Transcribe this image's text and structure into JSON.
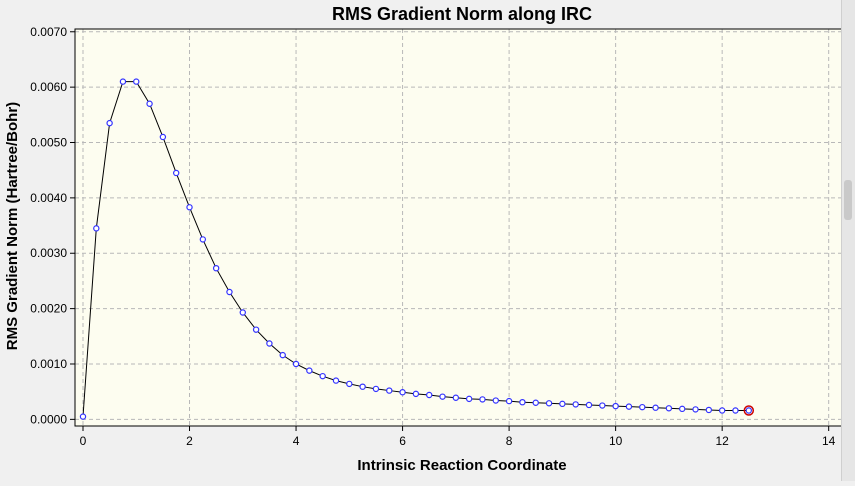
{
  "chart_data": {
    "type": "line",
    "title": "RMS Gradient Norm along IRC",
    "xlabel": "Intrinsic Reaction Coordinate",
    "ylabel": "RMS Gradient Norm (Hartree/Bohr)",
    "xlim": [
      0,
      14
    ],
    "ylim": [
      0,
      0.007
    ],
    "x_ticks": [
      "0",
      "2",
      "4",
      "6",
      "8",
      "10",
      "12",
      "14"
    ],
    "y_ticks": [
      "0.0000",
      "0.0010",
      "0.0020",
      "0.0030",
      "0.0040",
      "0.0050",
      "0.0060",
      "0.0070"
    ],
    "grid": true,
    "legend": "none",
    "series": [
      {
        "line_color": "#000000",
        "marker_color": "#3333ff",
        "highlight_color": "#cc0000",
        "x": [
          0,
          0.25,
          0.5,
          0.75,
          1.0,
          1.25,
          1.5,
          1.75,
          2.0,
          2.25,
          2.5,
          2.75,
          3.0,
          3.25,
          3.5,
          3.75,
          4.0,
          4.25,
          4.5,
          4.75,
          5.0,
          5.25,
          5.5,
          5.75,
          6.0,
          6.25,
          6.5,
          6.75,
          7.0,
          7.25,
          7.5,
          7.75,
          8.0,
          8.25,
          8.5,
          8.75,
          9.0,
          9.25,
          9.5,
          9.75,
          10.0,
          10.25,
          10.5,
          10.75,
          11.0,
          11.25,
          11.5,
          11.75,
          12.0,
          12.25,
          12.5
        ],
        "y": [
          5e-05,
          0.00345,
          0.00535,
          0.0061,
          0.0061,
          0.0057,
          0.0051,
          0.00445,
          0.00383,
          0.00325,
          0.00273,
          0.0023,
          0.00193,
          0.00162,
          0.00137,
          0.00116,
          0.001,
          0.00088,
          0.00078,
          0.0007,
          0.00064,
          0.00059,
          0.00055,
          0.00052,
          0.00049,
          0.00046,
          0.00044,
          0.00041,
          0.00039,
          0.00037,
          0.00036,
          0.00034,
          0.00033,
          0.00031,
          0.0003,
          0.00029,
          0.00028,
          0.00027,
          0.00026,
          0.00025,
          0.00024,
          0.00023,
          0.00022,
          0.00021,
          0.0002,
          0.00019,
          0.00018,
          0.00017,
          0.00016,
          0.00016,
          0.00016
        ]
      }
    ]
  },
  "colors": {
    "plot_background": "#fdfdf0",
    "grid": "#b8b8b8"
  }
}
